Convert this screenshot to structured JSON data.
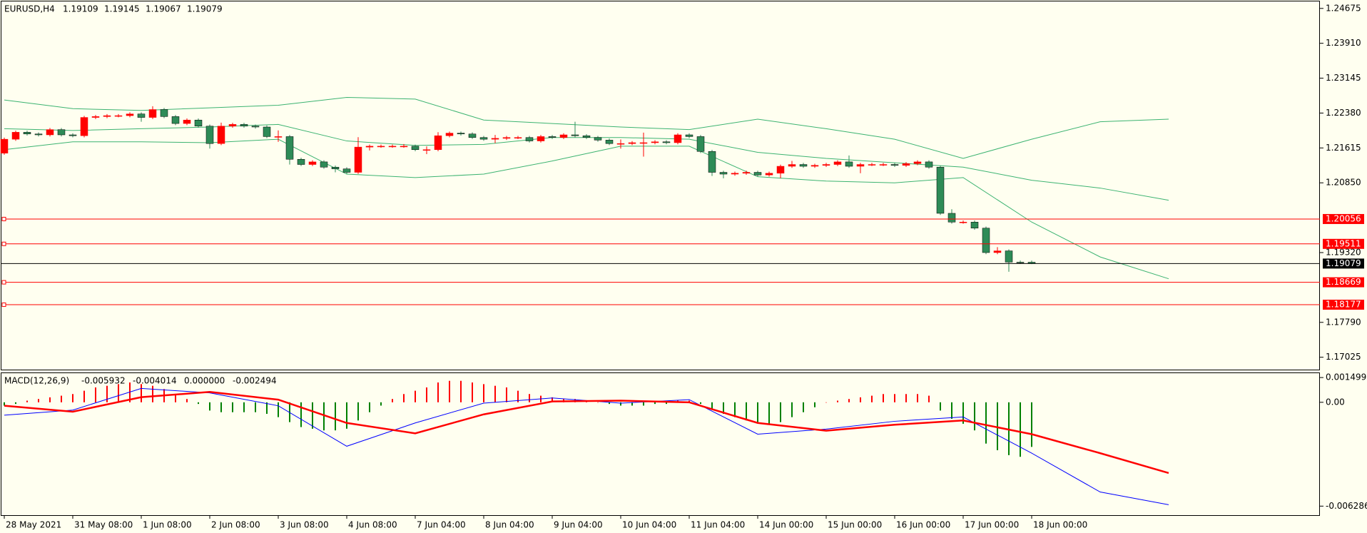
{
  "chart_data": [
    {
      "type": "candlestick",
      "symbol": "EURUSD,H4",
      "open": [
        1.215,
        1.21806,
        1.21959,
        1.21921,
        1.21902,
        1.22017,
        1.21902,
        1.21883,
        1.22284,
        1.22303,
        1.22323,
        1.22323,
        1.22361,
        1.22284,
        1.22457,
        1.22303,
        1.22151,
        1.22227,
        1.22093,
        1.21711,
        1.22093,
        1.22131,
        1.22093,
        1.22074,
        1.21864,
        1.21864,
        1.21366,
        1.21252,
        1.21309,
        1.21194,
        1.21156,
        1.2108,
        1.21634,
        1.21653,
        1.21653,
        1.21653,
        1.21653,
        1.21577,
        1.21577,
        1.21883,
        1.2194,
        1.21921,
        1.21844,
        1.21806,
        1.21825,
        1.21844,
        1.21844,
        1.21768,
        1.21864,
        1.21844,
        1.21902,
        1.21883,
        1.21844,
        1.21787,
        1.21711,
        1.21711,
        1.2173,
        1.2173,
        1.21749,
        1.2173,
        1.21902,
        1.21864,
        1.21538,
        1.2108,
        1.21041,
        1.2106,
        1.2108,
        1.21022,
        1.2106,
        1.21213,
        1.21252,
        1.21213,
        1.21233,
        1.21252,
        1.21309,
        1.21213,
        1.21252,
        1.21252,
        1.21252,
        1.21233,
        1.21271,
        1.21309,
        1.21194,
        1.20181,
        1.19989,
        1.19989,
        1.19856,
        1.1932,
        1.19358,
        1.1911,
        1.19109
      ],
      "high": [
        1.21841,
        1.21994,
        1.21994,
        1.21956,
        1.22052,
        1.22052,
        1.21937,
        1.22319,
        1.22338,
        1.22358,
        1.22358,
        1.22396,
        1.22396,
        1.2253,
        1.22492,
        1.22338,
        1.22262,
        1.22262,
        1.22128,
        1.2217,
        1.22166,
        1.22166,
        1.22128,
        1.22109,
        1.22,
        1.21899,
        1.21401,
        1.21344,
        1.21344,
        1.21229,
        1.21191,
        1.2185,
        1.21688,
        1.21688,
        1.21688,
        1.217,
        1.21688,
        1.2165,
        1.2196,
        1.21975,
        1.21975,
        1.21956,
        1.21879,
        1.219,
        1.21879,
        1.21879,
        1.21879,
        1.21899,
        1.21899,
        1.21937,
        1.22189,
        1.21918,
        1.21879,
        1.21822,
        1.218,
        1.21765,
        1.2195,
        1.21784,
        1.21784,
        1.21937,
        1.21937,
        1.21899,
        1.21573,
        1.21115,
        1.21095,
        1.21115,
        1.21115,
        1.21095,
        1.21248,
        1.2133,
        1.21287,
        1.21268,
        1.21287,
        1.21344,
        1.2145,
        1.21287,
        1.21287,
        1.21287,
        1.21287,
        1.21306,
        1.21344,
        1.21344,
        1.21229,
        1.2027,
        1.20024,
        1.20024,
        1.19891,
        1.1944,
        1.19393,
        1.19145,
        1.19145
      ],
      "low": [
        1.21465,
        1.21771,
        1.21886,
        1.21867,
        1.21867,
        1.21867,
        1.21848,
        1.21848,
        1.22249,
        1.22268,
        1.22288,
        1.22288,
        1.2219,
        1.22249,
        1.22268,
        1.22116,
        1.22116,
        1.22058,
        1.216,
        1.21676,
        1.22058,
        1.22058,
        1.22039,
        1.21829,
        1.2175,
        1.2125,
        1.21217,
        1.21217,
        1.21159,
        1.2108,
        1.21045,
        1.21045,
        1.2156,
        1.21618,
        1.21618,
        1.21618,
        1.21542,
        1.2148,
        1.21542,
        1.21848,
        1.21886,
        1.21809,
        1.21771,
        1.2172,
        1.2179,
        1.21809,
        1.21733,
        1.21733,
        1.21809,
        1.21809,
        1.21848,
        1.21809,
        1.21752,
        1.21676,
        1.216,
        1.21676,
        1.21424,
        1.21695,
        1.21695,
        1.21695,
        1.21829,
        1.21503,
        1.21,
        1.2095,
        1.21006,
        1.21025,
        1.20987,
        1.20987,
        1.2095,
        1.21178,
        1.21178,
        1.21178,
        1.21198,
        1.21217,
        1.21178,
        1.2106,
        1.21217,
        1.21217,
        1.21198,
        1.21198,
        1.21236,
        1.21159,
        1.20146,
        1.19954,
        1.19954,
        1.19821,
        1.19285,
        1.19285,
        1.189,
        1.19074,
        1.19067
      ],
      "close": [
        1.21806,
        1.21959,
        1.21921,
        1.21902,
        1.22017,
        1.21902,
        1.21883,
        1.22284,
        1.22303,
        1.22323,
        1.22323,
        1.22361,
        1.22284,
        1.22457,
        1.22303,
        1.22151,
        1.22227,
        1.22093,
        1.21711,
        1.22093,
        1.22131,
        1.22093,
        1.22074,
        1.21864,
        1.21864,
        1.21366,
        1.21252,
        1.21309,
        1.21194,
        1.21156,
        1.2108,
        1.21634,
        1.21653,
        1.21653,
        1.21653,
        1.21653,
        1.21577,
        1.21577,
        1.21883,
        1.2194,
        1.21921,
        1.21844,
        1.21806,
        1.21825,
        1.21844,
        1.21844,
        1.21768,
        1.21864,
        1.21844,
        1.21902,
        1.21883,
        1.21844,
        1.21787,
        1.21711,
        1.21711,
        1.2173,
        1.2173,
        1.21749,
        1.2173,
        1.21902,
        1.21864,
        1.21538,
        1.2108,
        1.21041,
        1.2106,
        1.2108,
        1.21022,
        1.2106,
        1.21213,
        1.21252,
        1.21213,
        1.21233,
        1.21252,
        1.21309,
        1.21213,
        1.21252,
        1.21252,
        1.21252,
        1.21233,
        1.21271,
        1.21309,
        1.21194,
        1.20181,
        1.19989,
        1.19989,
        1.19856,
        1.1932,
        1.19358,
        1.1911,
        1.19109,
        1.19079
      ],
      "up_color": "#ff0000",
      "down_color": "#2e8b57",
      "x_labels": [
        "28 May 2021",
        "31 May 08:00",
        "1 Jun 08:00",
        "2 Jun 08:00",
        "3 Jun 08:00",
        "4 Jun 08:00",
        "7 Jun 04:00",
        "8 Jun 04:00",
        "9 Jun 04:00",
        "10 Jun 04:00",
        "11 Jun 04:00",
        "14 Jun 00:00",
        "15 Jun 00:00",
        "16 Jun 00:00",
        "17 Jun 00:00",
        "18 Jun 00:00"
      ],
      "bands": [
        {
          "color": "#3cb371",
          "values": [
            1.22667,
            1.22476,
            1.22437,
            1.22495,
            1.22552,
            1.22724,
            1.22686,
            1.22227,
            1.22151,
            1.22074,
            1.22017,
            1.22246,
            1.22036,
            1.21806,
            1.21386,
            1.21806,
            1.22189,
            1.22246
          ]
        },
        {
          "color": "#3cb371",
          "values": [
            1.22036,
            1.21998,
            1.22036,
            1.22074,
            1.22131,
            1.21768,
            1.21672,
            1.21692,
            1.21844,
            1.21844,
            1.21806,
            1.21519,
            1.21386,
            1.2129,
            1.21194,
            1.20907,
            1.20735,
            1.20468
          ]
        },
        {
          "color": "#3cb371",
          "values": [
            1.21577,
            1.21749,
            1.21749,
            1.2173,
            1.21806,
            1.21041,
            1.20965,
            1.21041,
            1.21328,
            1.21653,
            1.21653,
            1.20984,
            1.20888,
            1.2085,
            1.20965,
            1.19989,
            1.19224,
            1.18746
          ]
        }
      ],
      "ylim": [
        1.16738,
        1.24828
      ],
      "yticks": [
        1.24675,
        {
          "value": 1.2391,
          "label": "1.23910"
        },
        1.23145,
        {
          "value": 1.2238,
          "label": "1.22380"
        },
        1.21615,
        {
          "value": 1.2085,
          "label": "1.20850"
        },
        {
          "value": 1.1932,
          "label": "1.19320"
        },
        {
          "value": 1.1779,
          "label": "1.17790"
        },
        1.17025
      ],
      "levels": {
        "values": [
          1.20056,
          1.19511,
          1.18669,
          1.18177
        ],
        "color": "#ff0000"
      },
      "last_price_color": "#000000"
    },
    {
      "type": "macd",
      "title": "MACD(12,26,9)",
      "values": [
        -0.005932,
        -0.004014,
        0,
        -0.002494
      ],
      "value_labels": [
        "-0.005932",
        "-0.004014",
        "0.000000",
        "-0.002494"
      ],
      "histogram": {
        "values": [
          -0.0002,
          -0.0001,
          0.0001,
          0.0002,
          0.0003,
          0.0004,
          0.0005,
          0.0007,
          0.0009,
          0.001,
          0.0011,
          0.0012,
          0.0011,
          0.001,
          0.0008,
          0.0005,
          0.0002,
          -0.0001,
          -0.0005,
          -0.0006,
          -0.0006,
          -0.0006,
          -0.0006,
          -0.0007,
          -0.0009,
          -0.0012,
          -0.0015,
          -0.0016,
          -0.0017,
          -0.0017,
          -0.0016,
          -0.0011,
          -0.0006,
          -0.0002,
          0.0002,
          0.0005,
          0.0007,
          0.0009,
          0.0012,
          0.0013,
          0.0013,
          0.0012,
          0.0011,
          0.001,
          0.0009,
          0.0007,
          0.0005,
          0.0004,
          0.0003,
          0.0002,
          0.0002,
          0.0001,
          0,
          -0.0001,
          -0.0002,
          -0.0002,
          -0.0002,
          -0.0001,
          -0.0001,
          0.0001,
          0.0001,
          -0.0001,
          -0.0004,
          -0.0007,
          -0.0009,
          -0.0011,
          -0.0012,
          -0.0013,
          -0.0012,
          -0.0009,
          -0.0006,
          -0.0003,
          0,
          0.0001,
          0.0002,
          0.0003,
          0.0004,
          0.0005,
          0.0005,
          0.0005,
          0.0005,
          0.0004,
          -0.0005,
          -0.001,
          -0.0013,
          -0.0017,
          -0.0025,
          -0.0029,
          -0.0032,
          -0.0033,
          -0.0027
        ],
        "pos_color": "#ff0000",
        "neg_color": "#008000"
      },
      "series": [
        {
          "color": "#0000ff",
          "values": [
            -0.00078,
            -0.00047,
            0.00084,
            0.00057,
            -0.00021,
            -0.00266,
            -0.00125,
            -5e-05,
            0.00026,
            -5e-05,
            0.00016,
            -0.00193,
            -0.00162,
            -0.00115,
            -0.00089,
            -0.00308,
            -0.00543,
            -0.0062
          ]
        },
        {
          "color": "#ff0000",
          "values": [
            -0.00021,
            -0.00057,
            0.00031,
            0.00063,
            0.00016,
            -0.00125,
            -0.00188,
            -0.00073,
            5e-05,
            0.0001,
            0,
            -0.00125,
            -0.00172,
            -0.00136,
            -0.0011,
            -0.00193,
            -0.00308,
            -0.00428
          ]
        }
      ],
      "ylim": [
        -0.00679,
        0.00172
      ],
      "yticks": [
        0.001499,
        {
          "value": 0,
          "label": "0.00"
        },
        -0.006286
      ]
    }
  ]
}
